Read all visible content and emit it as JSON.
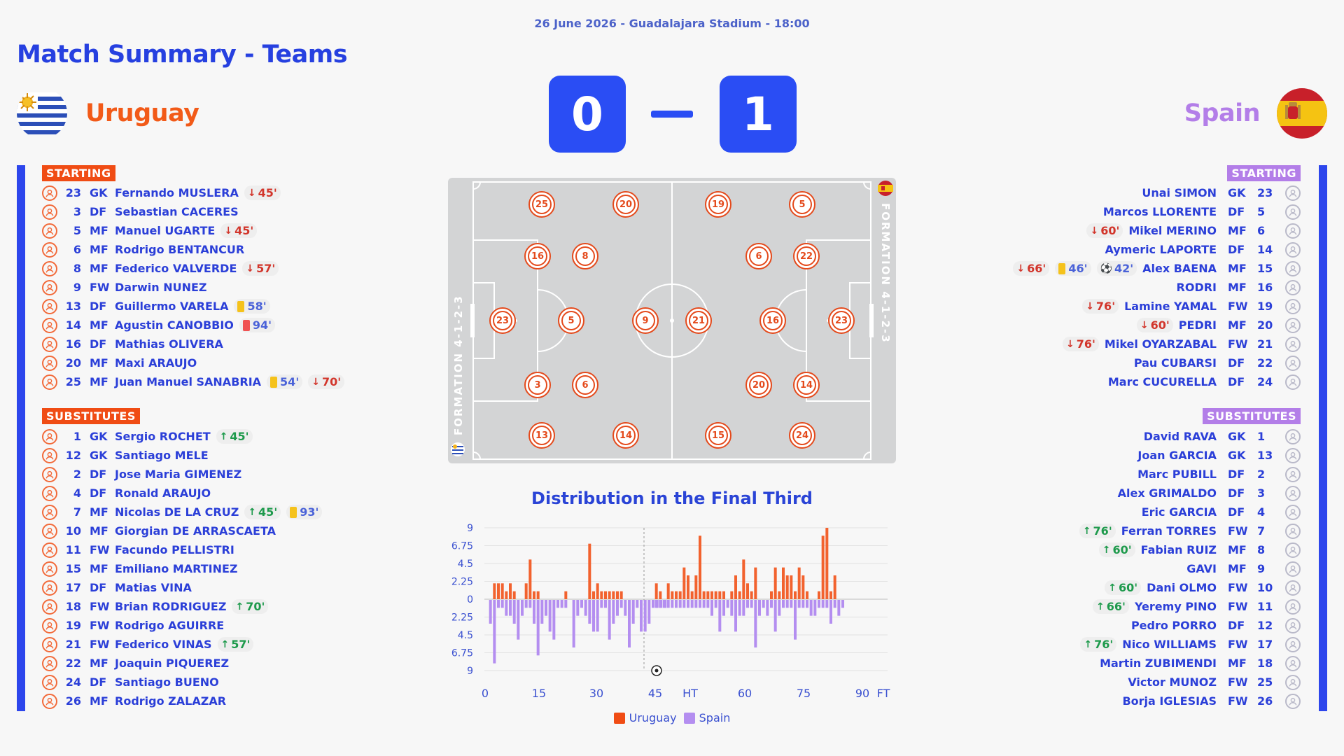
{
  "header": {
    "date_venue": "26 June 2026 - Guadalajara Stadium - 18:00",
    "title": "Match Summary - Teams"
  },
  "home": {
    "name": "Uruguay",
    "score": "0",
    "color": "#f25a18",
    "starting_label": "STARTING",
    "subs_label": "SUBSTITUTES",
    "starting": [
      {
        "num": "23",
        "pos": "GK",
        "name": "Fernando MUSLERA",
        "events": [
          {
            "type": "out",
            "min": "45'"
          }
        ]
      },
      {
        "num": "3",
        "pos": "DF",
        "name": "Sebastian CACERES",
        "events": []
      },
      {
        "num": "5",
        "pos": "MF",
        "name": "Manuel UGARTE",
        "events": [
          {
            "type": "out",
            "min": "45'"
          }
        ]
      },
      {
        "num": "6",
        "pos": "MF",
        "name": "Rodrigo BENTANCUR",
        "events": []
      },
      {
        "num": "8",
        "pos": "MF",
        "name": "Federico VALVERDE",
        "events": [
          {
            "type": "out",
            "min": "57'"
          }
        ]
      },
      {
        "num": "9",
        "pos": "FW",
        "name": "Darwin NUNEZ",
        "events": []
      },
      {
        "num": "13",
        "pos": "DF",
        "name": "Guillermo VARELA",
        "events": [
          {
            "type": "yc",
            "min": "58'"
          }
        ]
      },
      {
        "num": "14",
        "pos": "MF",
        "name": "Agustin CANOBBIO",
        "events": [
          {
            "type": "rc",
            "min": "94'"
          }
        ]
      },
      {
        "num": "16",
        "pos": "DF",
        "name": "Mathias OLIVERA",
        "events": []
      },
      {
        "num": "20",
        "pos": "MF",
        "name": "Maxi ARAUJO",
        "events": []
      },
      {
        "num": "25",
        "pos": "MF",
        "name": "Juan Manuel SANABRIA",
        "events": [
          {
            "type": "yc",
            "min": "54'"
          },
          {
            "type": "out",
            "min": "70'"
          }
        ]
      }
    ],
    "substitutes": [
      {
        "num": "1",
        "pos": "GK",
        "name": "Sergio ROCHET",
        "events": [
          {
            "type": "in",
            "min": "45'"
          }
        ]
      },
      {
        "num": "12",
        "pos": "GK",
        "name": "Santiago MELE",
        "events": []
      },
      {
        "num": "2",
        "pos": "DF",
        "name": "Jose Maria GIMENEZ",
        "events": []
      },
      {
        "num": "4",
        "pos": "DF",
        "name": "Ronald ARAUJO",
        "events": []
      },
      {
        "num": "7",
        "pos": "MF",
        "name": "Nicolas DE LA CRUZ",
        "events": [
          {
            "type": "in",
            "min": "45'"
          },
          {
            "type": "yc",
            "min": "93'"
          }
        ]
      },
      {
        "num": "10",
        "pos": "MF",
        "name": "Giorgian DE ARRASCAETA",
        "events": []
      },
      {
        "num": "11",
        "pos": "FW",
        "name": "Facundo PELLISTRI",
        "events": []
      },
      {
        "num": "15",
        "pos": "MF",
        "name": "Emiliano MARTINEZ",
        "events": []
      },
      {
        "num": "17",
        "pos": "DF",
        "name": "Matias VINA",
        "events": []
      },
      {
        "num": "18",
        "pos": "FW",
        "name": "Brian RODRIGUEZ",
        "events": [
          {
            "type": "in",
            "min": "70'"
          }
        ]
      },
      {
        "num": "19",
        "pos": "FW",
        "name": "Rodrigo AGUIRRE",
        "events": []
      },
      {
        "num": "21",
        "pos": "FW",
        "name": "Federico VINAS",
        "events": [
          {
            "type": "in",
            "min": "57'"
          }
        ]
      },
      {
        "num": "22",
        "pos": "MF",
        "name": "Joaquin PIQUEREZ",
        "events": []
      },
      {
        "num": "24",
        "pos": "DF",
        "name": "Santiago BUENO",
        "events": []
      },
      {
        "num": "26",
        "pos": "MF",
        "name": "Rodrigo ZALAZAR",
        "events": []
      }
    ]
  },
  "away": {
    "name": "Spain",
    "score": "1",
    "color": "#b37ee8",
    "starting_label": "STARTING",
    "subs_label": "SUBSTITUTES",
    "starting": [
      {
        "num": "23",
        "pos": "GK",
        "name": "Unai SIMON",
        "events": []
      },
      {
        "num": "5",
        "pos": "DF",
        "name": "Marcos LLORENTE",
        "events": []
      },
      {
        "num": "6",
        "pos": "MF",
        "name": "Mikel MERINO",
        "events": [
          {
            "type": "out",
            "min": "60'"
          }
        ]
      },
      {
        "num": "14",
        "pos": "DF",
        "name": "Aymeric LAPORTE",
        "events": []
      },
      {
        "num": "15",
        "pos": "MF",
        "name": "Alex BAENA",
        "events": [
          {
            "type": "out",
            "min": "66'"
          },
          {
            "type": "yc",
            "min": "46'"
          },
          {
            "type": "goal",
            "min": "42'"
          }
        ]
      },
      {
        "num": "16",
        "pos": "MF",
        "name": "RODRI",
        "events": []
      },
      {
        "num": "19",
        "pos": "FW",
        "name": "Lamine YAMAL",
        "events": [
          {
            "type": "out",
            "min": "76'"
          }
        ]
      },
      {
        "num": "20",
        "pos": "MF",
        "name": "PEDRI",
        "events": [
          {
            "type": "out",
            "min": "60'"
          }
        ]
      },
      {
        "num": "21",
        "pos": "FW",
        "name": "Mikel OYARZABAL",
        "events": [
          {
            "type": "out",
            "min": "76'"
          }
        ]
      },
      {
        "num": "22",
        "pos": "DF",
        "name": "Pau CUBARSI",
        "events": []
      },
      {
        "num": "24",
        "pos": "DF",
        "name": "Marc CUCURELLA",
        "events": []
      }
    ],
    "substitutes": [
      {
        "num": "1",
        "pos": "GK",
        "name": "David RAVA",
        "events": []
      },
      {
        "num": "13",
        "pos": "GK",
        "name": "Joan GARCIA",
        "events": []
      },
      {
        "num": "2",
        "pos": "DF",
        "name": "Marc PUBILL",
        "events": []
      },
      {
        "num": "3",
        "pos": "DF",
        "name": "Alex GRIMALDO",
        "events": []
      },
      {
        "num": "4",
        "pos": "DF",
        "name": "Eric GARCIA",
        "events": []
      },
      {
        "num": "7",
        "pos": "FW",
        "name": "Ferran TORRES",
        "events": [
          {
            "type": "in",
            "min": "76'"
          }
        ]
      },
      {
        "num": "8",
        "pos": "MF",
        "name": "Fabian RUIZ",
        "events": [
          {
            "type": "in",
            "min": "60'"
          }
        ]
      },
      {
        "num": "9",
        "pos": "MF",
        "name": "GAVI",
        "events": []
      },
      {
        "num": "10",
        "pos": "FW",
        "name": "Dani OLMO",
        "events": [
          {
            "type": "in",
            "min": "60'"
          }
        ]
      },
      {
        "num": "11",
        "pos": "FW",
        "name": "Yeremy PINO",
        "events": [
          {
            "type": "in",
            "min": "66'"
          }
        ]
      },
      {
        "num": "12",
        "pos": "DF",
        "name": "Pedro PORRO",
        "events": []
      },
      {
        "num": "17",
        "pos": "FW",
        "name": "Nico WILLIAMS",
        "events": [
          {
            "type": "in",
            "min": "76'"
          }
        ]
      },
      {
        "num": "18",
        "pos": "MF",
        "name": "Martin ZUBIMENDI",
        "events": []
      },
      {
        "num": "25",
        "pos": "FW",
        "name": "Victor MUNOZ",
        "events": []
      },
      {
        "num": "26",
        "pos": "FW",
        "name": "Borja IGLESIAS",
        "events": []
      }
    ]
  },
  "pitch": {
    "home_formation": "FORMATION 4-1-2-3",
    "away_formation": "FORMATION 4-1-2-3",
    "home_players": [
      "25",
      "20",
      "16",
      "8",
      "23",
      "5",
      "9",
      "3",
      "6",
      "13",
      "14"
    ],
    "away_players": [
      "19",
      "5",
      "6",
      "22",
      "21",
      "16",
      "23",
      "20",
      "14",
      "15",
      "24"
    ]
  },
  "chart_data": {
    "type": "bar",
    "title": "Distribution in the Final Third",
    "x_ticks": [
      "0",
      "15",
      "30",
      "45",
      "HT",
      "60",
      "75",
      "90",
      "FT"
    ],
    "y_tick_labels": [
      "9",
      "6.75",
      "4.5",
      "2.25",
      "0",
      "2.25",
      "4.5",
      "6.75",
      "9"
    ],
    "ylim": [
      -9,
      9
    ],
    "goal_marker": {
      "minute": 42
    },
    "series": [
      {
        "name": "Uruguay",
        "color": "#f2622e",
        "direction": "up",
        "x": [
          2,
          3,
          4,
          5,
          6,
          7,
          10,
          11,
          12,
          13,
          20,
          26,
          27,
          28,
          29,
          30,
          31,
          32,
          33,
          34,
          46,
          47,
          49,
          50,
          51,
          52,
          53,
          54,
          55,
          56,
          57,
          58,
          59,
          60,
          61,
          62,
          63,
          65,
          66,
          67,
          68,
          69,
          70,
          71,
          75,
          76,
          77,
          78,
          79,
          80,
          81,
          82,
          83,
          84,
          87,
          88,
          89,
          90,
          91
        ],
        "values": [
          2,
          2,
          2,
          1,
          2,
          1,
          2,
          5,
          1,
          1,
          1,
          7,
          1,
          2,
          1,
          1,
          1,
          1,
          1,
          1,
          2,
          1,
          2,
          1,
          1,
          1,
          4,
          3,
          1,
          3,
          8,
          1,
          1,
          1,
          1,
          1,
          1,
          1,
          3,
          1,
          5,
          2,
          1,
          4,
          1,
          4,
          1,
          4,
          3,
          3,
          1,
          4,
          3,
          1,
          1,
          8,
          9,
          1,
          3
        ]
      },
      {
        "name": "Spain",
        "color": "#b48ef0",
        "direction": "down",
        "x": [
          1,
          2,
          3,
          4,
          5,
          6,
          7,
          8,
          9,
          10,
          11,
          12,
          13,
          14,
          15,
          16,
          17,
          18,
          19,
          20,
          22,
          23,
          24,
          25,
          26,
          27,
          28,
          29,
          30,
          31,
          32,
          33,
          34,
          35,
          36,
          37,
          38,
          39,
          40,
          41,
          42,
          43,
          44,
          45,
          46,
          47,
          48,
          49,
          50,
          51,
          52,
          53,
          54,
          55,
          56,
          57,
          58,
          59,
          60,
          61,
          62,
          63,
          64,
          65,
          66,
          67,
          68,
          69,
          70,
          71,
          72,
          73,
          74,
          75,
          76,
          77,
          78,
          79,
          80,
          81,
          82,
          83,
          84,
          85,
          86,
          87,
          88,
          89,
          90,
          91,
          92,
          93
        ],
        "values": [
          3,
          8,
          1,
          1,
          2,
          2,
          3,
          5,
          2,
          1,
          1,
          3,
          7,
          3,
          2,
          4,
          5,
          1,
          1,
          1,
          6,
          2,
          1,
          2,
          3,
          4,
          4,
          1,
          1,
          5,
          3,
          2,
          1,
          2,
          6,
          3,
          1,
          4,
          4,
          3,
          1,
          1,
          1,
          1,
          1,
          1,
          1,
          1,
          1,
          1,
          1,
          1,
          1,
          1,
          1,
          1,
          1,
          1,
          2,
          1,
          4,
          2,
          1,
          2,
          4,
          2,
          2,
          1,
          1,
          6,
          2,
          1,
          2,
          1,
          4,
          2,
          1,
          1,
          1,
          5,
          1,
          1,
          1,
          2,
          2,
          1,
          1,
          1,
          3,
          1,
          2,
          1
        ]
      }
    ]
  }
}
